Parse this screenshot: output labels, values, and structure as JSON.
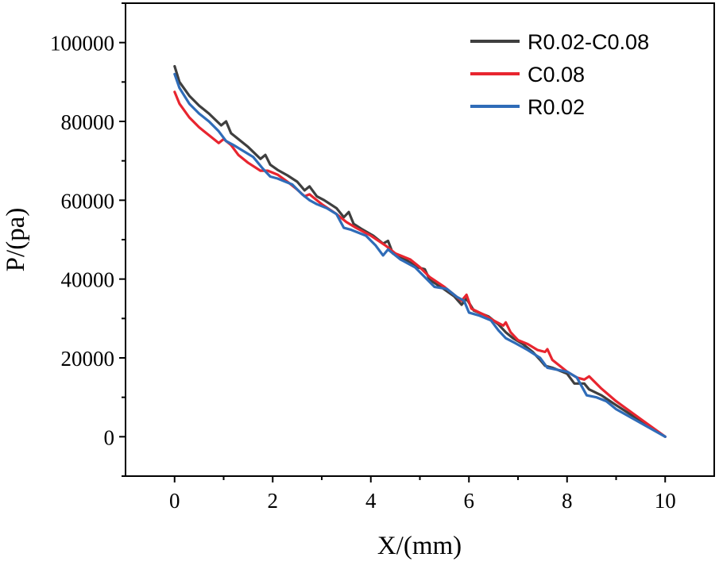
{
  "chart_data": {
    "type": "line",
    "title": "",
    "xlabel": "X/(mm)",
    "ylabel": "P/(pa)",
    "xlim": [
      -1,
      11
    ],
    "ylim": [
      -10000,
      110000
    ],
    "xticks": [
      0,
      2,
      4,
      6,
      8,
      10
    ],
    "yticks": [
      0,
      20000,
      40000,
      60000,
      80000,
      100000
    ],
    "xtick_labels": [
      "0",
      "2",
      "4",
      "6",
      "8",
      "10"
    ],
    "ytick_labels": [
      "0",
      "20000",
      "40000",
      "60000",
      "80000",
      "100000"
    ],
    "grid": false,
    "legend_position": "top-right",
    "series": [
      {
        "name": "R0.02-C0.08",
        "color": "#3f3f3f",
        "x": [
          0,
          0.1,
          0.3,
          0.5,
          0.7,
          0.95,
          1.05,
          1.15,
          1.3,
          1.5,
          1.75,
          1.85,
          1.95,
          2.1,
          2.3,
          2.5,
          2.65,
          2.75,
          2.9,
          3.05,
          3.3,
          3.45,
          3.55,
          3.65,
          3.8,
          4.05,
          4.25,
          4.35,
          4.45,
          4.7,
          4.95,
          5.1,
          5.2,
          5.45,
          5.7,
          5.85,
          5.95,
          6.1,
          6.4,
          6.6,
          6.75,
          6.9,
          7.1,
          7.3,
          7.45,
          7.55,
          7.7,
          8.0,
          8.15,
          8.35,
          8.45,
          8.7,
          9.0,
          9.5,
          10.0
        ],
        "y": [
          94000,
          90000,
          86500,
          84000,
          82000,
          79000,
          80000,
          77000,
          75500,
          73500,
          70500,
          71500,
          69000,
          67700,
          66300,
          64700,
          62500,
          63500,
          61000,
          60000,
          58000,
          55700,
          57000,
          54000,
          52800,
          51000,
          49000,
          49700,
          46500,
          45000,
          43000,
          42500,
          39800,
          37800,
          35600,
          33500,
          35000,
          32000,
          30500,
          28500,
          26500,
          25000,
          23500,
          21500,
          19500,
          18000,
          17500,
          16000,
          13500,
          13500,
          12000,
          10500,
          8000,
          4000,
          0
        ]
      },
      {
        "name": "C0.08",
        "color": "#e8252f",
        "x": [
          0,
          0.1,
          0.3,
          0.5,
          0.7,
          0.9,
          1.0,
          1.15,
          1.3,
          1.5,
          1.75,
          1.9,
          2.1,
          2.3,
          2.5,
          2.65,
          2.75,
          3.0,
          3.3,
          3.5,
          3.7,
          4.0,
          4.3,
          4.5,
          4.8,
          5.0,
          5.2,
          5.5,
          5.75,
          5.85,
          5.95,
          6.05,
          6.3,
          6.5,
          6.7,
          6.75,
          6.85,
          7.0,
          7.2,
          7.4,
          7.55,
          7.6,
          7.7,
          8.0,
          8.2,
          8.35,
          8.45,
          8.7,
          9.0,
          9.5,
          10.0
        ],
        "y": [
          87500,
          84500,
          81000,
          78500,
          76500,
          74500,
          75500,
          74000,
          71500,
          69500,
          67500,
          67500,
          66500,
          64700,
          62700,
          61000,
          61500,
          59000,
          56500,
          54500,
          53000,
          51000,
          48500,
          46500,
          45000,
          43000,
          40500,
          38000,
          35500,
          34500,
          36000,
          32500,
          31000,
          29500,
          28200,
          29000,
          26500,
          24500,
          23500,
          22000,
          21500,
          22200,
          19500,
          16500,
          15000,
          14500,
          15300,
          12200,
          9000,
          4500,
          0
        ]
      },
      {
        "name": "R0.02",
        "color": "#2f6cb8",
        "x": [
          0,
          0.1,
          0.3,
          0.5,
          0.7,
          0.9,
          1.05,
          1.2,
          1.4,
          1.6,
          1.8,
          1.95,
          2.1,
          2.4,
          2.6,
          2.75,
          2.9,
          3.1,
          3.3,
          3.45,
          3.6,
          3.9,
          4.1,
          4.25,
          4.35,
          4.6,
          4.9,
          5.1,
          5.3,
          5.55,
          5.75,
          5.9,
          6.0,
          6.2,
          6.45,
          6.6,
          6.75,
          6.95,
          7.2,
          7.45,
          7.6,
          7.8,
          8.0,
          8.2,
          8.4,
          8.6,
          8.8,
          9.0,
          9.5,
          10.0
        ],
        "y": [
          92000,
          88500,
          84500,
          82000,
          80000,
          77500,
          75000,
          74000,
          72500,
          71000,
          68000,
          66000,
          65500,
          64000,
          61500,
          60000,
          59000,
          58000,
          56500,
          53000,
          52500,
          51000,
          48500,
          46000,
          47500,
          45000,
          43000,
          40500,
          38000,
          37500,
          35500,
          34500,
          31500,
          30800,
          29500,
          27000,
          25000,
          23700,
          22000,
          20000,
          17500,
          17000,
          16500,
          15000,
          10500,
          10000,
          9000,
          7000,
          3500,
          0
        ]
      }
    ]
  }
}
